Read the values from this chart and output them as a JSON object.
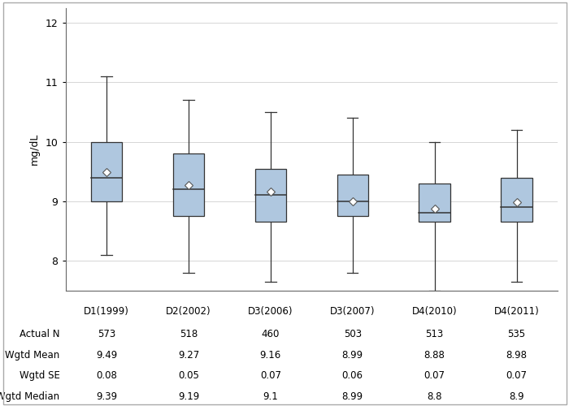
{
  "categories": [
    "D1(1999)",
    "D2(2002)",
    "D3(2006)",
    "D3(2007)",
    "D4(2010)",
    "D4(2011)"
  ],
  "actual_n": [
    573,
    518,
    460,
    503,
    513,
    535
  ],
  "wgtd_mean": [
    9.49,
    9.27,
    9.16,
    8.99,
    8.88,
    8.98
  ],
  "wgtd_se": [
    0.08,
    0.05,
    0.07,
    0.06,
    0.07,
    0.07
  ],
  "wgtd_median": [
    9.39,
    9.19,
    9.1,
    8.99,
    8.8,
    8.9
  ],
  "box_q1": [
    9.0,
    8.75,
    8.65,
    8.75,
    8.65,
    8.65
  ],
  "box_q3": [
    10.0,
    9.8,
    9.55,
    9.45,
    9.3,
    9.4
  ],
  "box_median": [
    9.4,
    9.2,
    9.1,
    9.0,
    8.8,
    8.9
  ],
  "box_mean": [
    9.49,
    9.27,
    9.16,
    8.99,
    8.88,
    8.98
  ],
  "whisker_low": [
    8.1,
    7.8,
    7.65,
    7.8,
    7.5,
    7.65
  ],
  "whisker_high": [
    11.1,
    10.7,
    10.5,
    10.4,
    10.0,
    10.2
  ],
  "box_color": "#afc7df",
  "box_edge_color": "#333333",
  "median_color": "#333333",
  "whisker_color": "#333333",
  "mean_marker_facecolor": "#ffffff",
  "mean_marker_edgecolor": "#555555",
  "ylabel": "mg/dL",
  "ylim": [
    7.5,
    12.25
  ],
  "yticks": [
    8,
    9,
    10,
    11,
    12
  ],
  "grid_color": "#d0d0d0",
  "background_color": "#ffffff",
  "table_row_labels": [
    "Actual N",
    "Wgtd Mean",
    "Wgtd SE",
    "Wgtd Median"
  ],
  "figsize": [
    7.0,
    5.0
  ],
  "dpi": 100,
  "box_width": 0.38
}
